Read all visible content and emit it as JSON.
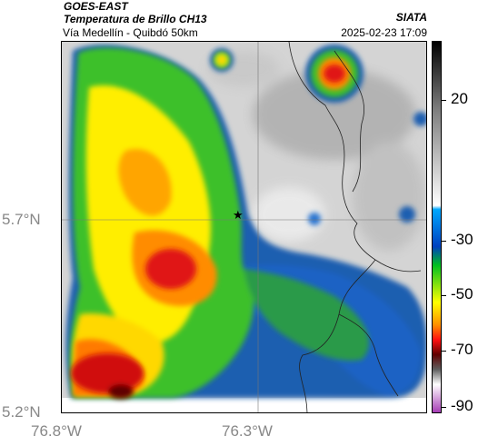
{
  "header": {
    "title": "GOES-EAST",
    "subtitle": "Temperatura de Brillo CH13",
    "organization": "SIATA",
    "location": "Vía Medellín - Quibdó 50km",
    "timestamp": "2025-02-23 17:09"
  },
  "axes": {
    "lat_labels": [
      "5.7°N",
      "5.2°N"
    ],
    "lon_labels": [
      "76.8°W",
      "76.3°W"
    ]
  },
  "colorbar": {
    "labels": [
      "20",
      "-30",
      "-50",
      "-70",
      "-90"
    ],
    "stops": [
      "#000000",
      "#7d7d7d",
      "#ffffff",
      "#00a8ff",
      "#0040c0",
      "#00c020",
      "#ffff00",
      "#ff9000",
      "#ff1010",
      "#600000",
      "#ffffff",
      "#a030b0"
    ]
  },
  "map": {
    "marker_icon": "star-icon",
    "colors": {
      "cloud_gray": "#d8d8d8",
      "blue": "#1d5fb0",
      "green": "#3dc02c",
      "yellow": "#ffee00",
      "orange": "#ffa500",
      "red": "#e01818"
    }
  }
}
